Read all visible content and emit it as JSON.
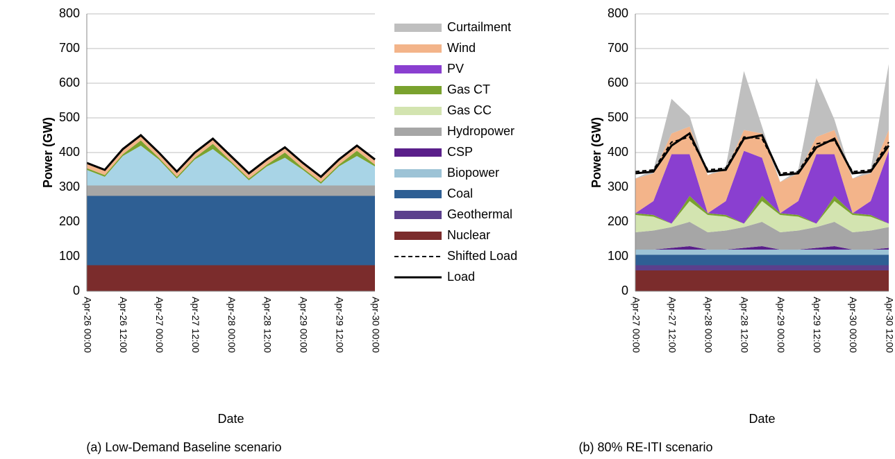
{
  "chart_data": [
    {
      "type": "area",
      "ylabel": "Power (GW)",
      "xlabel": "Date",
      "caption": "(a) Low-Demand Baseline scenario",
      "categories": [
        "Apr-26 00:00",
        null,
        "Apr-26 12:00",
        null,
        "Apr-27 00:00",
        null,
        "Apr-27 12:00",
        null,
        "Apr-28 00:00",
        null,
        "Apr-28 12:00",
        null,
        "Apr-29 00:00",
        null,
        "Apr-29 12:00",
        null,
        "Apr-30 00:00"
      ],
      "ylim": [
        0,
        800
      ],
      "yticks": [
        0,
        100,
        200,
        300,
        400,
        500,
        600,
        700,
        800
      ],
      "grid": true,
      "series": [
        {
          "color": "#f3b48a",
          "stack": true,
          "values": [
            15,
            15,
            15,
            15,
            15,
            15,
            15,
            15,
            15,
            15,
            15,
            15,
            15,
            15,
            15,
            15,
            15
          ]
        },
        {
          "color": "#7aa22e",
          "stack": true,
          "values": [
            5,
            5,
            5,
            15,
            5,
            5,
            5,
            15,
            5,
            5,
            5,
            15,
            5,
            5,
            5,
            15,
            5
          ]
        },
        {
          "color": "#a8d4e6",
          "stack": true,
          "values": [
            45,
            25,
            85,
            115,
            75,
            20,
            75,
            105,
            65,
            15,
            55,
            80,
            45,
            5,
            55,
            85,
            55
          ]
        },
        {
          "color": "#a6a6a6",
          "stack": true,
          "values": [
            30,
            30,
            30,
            30,
            30,
            30,
            30,
            30,
            30,
            30,
            30,
            30,
            30,
            30,
            30,
            30,
            30
          ]
        },
        {
          "color": "#2e5f94",
          "stack": true,
          "values": [
            200,
            200,
            200,
            200,
            200,
            200,
            200,
            200,
            200,
            200,
            200,
            200,
            200,
            200,
            200,
            200,
            200
          ]
        },
        {
          "color": "#7b2c2c",
          "stack": true,
          "values": [
            75,
            75,
            75,
            75,
            75,
            75,
            75,
            75,
            75,
            75,
            75,
            75,
            75,
            75,
            75,
            75,
            75
          ]
        },
        {
          "color": "#000000",
          "stack": false,
          "line_style": "solid",
          "values": [
            370,
            350,
            410,
            450,
            400,
            345,
            400,
            440,
            390,
            340,
            380,
            415,
            370,
            330,
            380,
            420,
            380
          ]
        }
      ]
    },
    {
      "type": "area",
      "ylabel": "Power (GW)",
      "xlabel": "Date",
      "caption": "(b) 80% RE-ITI scenario",
      "categories": [
        "Apr-27 00:00",
        null,
        "Apr-27 12:00",
        null,
        "Apr-28 00:00",
        null,
        "Apr-28 12:00",
        null,
        "Apr-29 00:00",
        null,
        "Apr-29 12:00",
        null,
        "Apr-30 00:00",
        null,
        "Apr-30 12:00"
      ],
      "ylim": [
        0,
        800
      ],
      "yticks": [
        0,
        100,
        200,
        300,
        400,
        500,
        600,
        700,
        800
      ],
      "grid": true,
      "legend": "left",
      "series": [
        {
          "name": "Curtailment",
          "color": "#bfbfbf",
          "stack": true,
          "values": [
            0,
            10,
            100,
            30,
            0,
            10,
            170,
            20,
            0,
            10,
            170,
            30,
            0,
            10,
            190
          ]
        },
        {
          "name": "Wind",
          "color": "#f3b48a",
          "stack": true,
          "values": [
            100,
            80,
            60,
            80,
            110,
            90,
            60,
            70,
            90,
            80,
            50,
            70,
            100,
            80,
            60
          ]
        },
        {
          "name": "PV",
          "color": "#8a3fd0",
          "stack": true,
          "values": [
            0,
            40,
            200,
            120,
            0,
            40,
            210,
            110,
            0,
            40,
            200,
            120,
            0,
            40,
            210
          ]
        },
        {
          "name": "Gas CT",
          "color": "#7aa22e",
          "stack": true,
          "values": [
            5,
            5,
            0,
            15,
            5,
            5,
            0,
            15,
            5,
            5,
            0,
            15,
            5,
            5,
            0
          ]
        },
        {
          "name": "Gas CC",
          "color": "#d3e4b0",
          "stack": true,
          "values": [
            50,
            40,
            10,
            60,
            50,
            40,
            10,
            60,
            50,
            40,
            10,
            60,
            50,
            40,
            10
          ]
        },
        {
          "name": "Hydropower",
          "color": "#a6a6a6",
          "stack": true,
          "values": [
            50,
            55,
            60,
            70,
            50,
            55,
            60,
            70,
            50,
            55,
            60,
            70,
            50,
            55,
            60
          ]
        },
        {
          "name": "CSP",
          "color": "#5a1f8a",
          "stack": true,
          "values": [
            0,
            0,
            5,
            10,
            0,
            0,
            5,
            10,
            0,
            0,
            5,
            10,
            0,
            0,
            5
          ]
        },
        {
          "name": "Biopower",
          "color": "#9dc3d6",
          "stack": true,
          "values": [
            15,
            15,
            15,
            15,
            15,
            15,
            15,
            15,
            15,
            15,
            15,
            15,
            15,
            15,
            15
          ]
        },
        {
          "name": "Coal",
          "color": "#2e5f94",
          "stack": true,
          "values": [
            30,
            30,
            30,
            30,
            30,
            30,
            30,
            30,
            30,
            30,
            30,
            30,
            30,
            30,
            30
          ]
        },
        {
          "name": "Geothermal",
          "color": "#5b3f8c",
          "stack": true,
          "values": [
            15,
            15,
            15,
            15,
            15,
            15,
            15,
            15,
            15,
            15,
            15,
            15,
            15,
            15,
            15
          ]
        },
        {
          "name": "Nuclear",
          "color": "#7b2c2c",
          "stack": true,
          "values": [
            60,
            60,
            60,
            60,
            60,
            60,
            60,
            60,
            60,
            60,
            60,
            60,
            60,
            60,
            60
          ]
        },
        {
          "name": "Shifted Load",
          "color": "#000000",
          "stack": false,
          "line_style": "dashed",
          "values": [
            345,
            350,
            430,
            445,
            350,
            355,
            445,
            440,
            340,
            345,
            425,
            435,
            345,
            350,
            430
          ]
        },
        {
          "name": "Load",
          "color": "#000000",
          "stack": false,
          "line_style": "solid",
          "values": [
            340,
            345,
            420,
            455,
            345,
            350,
            440,
            450,
            335,
            340,
            415,
            440,
            340,
            345,
            420
          ]
        }
      ]
    }
  ]
}
